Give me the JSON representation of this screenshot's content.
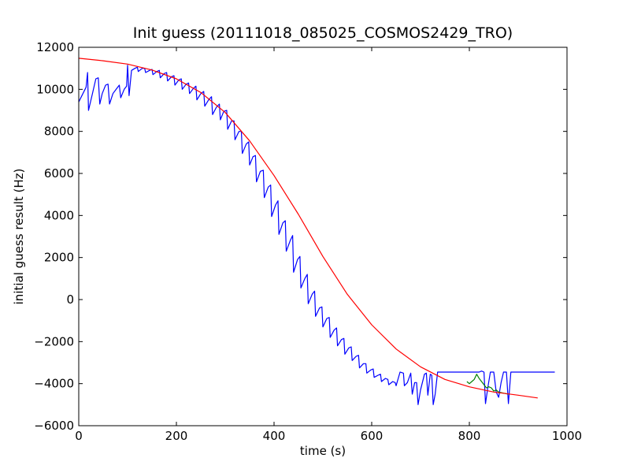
{
  "chart_data": {
    "type": "line",
    "title": "Init guess (20111018_085025_COSMOS2429_TRO)",
    "xlabel": "time (s)",
    "ylabel": "initial guess result (Hz)",
    "xlim": [
      0,
      1000
    ],
    "ylim": [
      -6000,
      12000
    ],
    "xticks": [
      0,
      200,
      400,
      600,
      800,
      1000
    ],
    "xtick_labels": [
      "0",
      "200",
      "400",
      "600",
      "800",
      "1000"
    ],
    "yticks": [
      -6000,
      -4000,
      -2000,
      0,
      2000,
      4000,
      6000,
      8000,
      10000,
      12000
    ],
    "ytick_labels": [
      "−6000",
      "−4000",
      "−2000",
      "0",
      "2000",
      "4000",
      "6000",
      "8000",
      "10000",
      "12000"
    ],
    "grid": false,
    "legend": "none",
    "series": [
      {
        "color": "#0000ff",
        "points": [
          [
            0,
            9400
          ],
          [
            15,
            10100
          ],
          [
            18,
            10800
          ],
          [
            20,
            9000
          ],
          [
            28,
            9800
          ],
          [
            35,
            10500
          ],
          [
            40,
            10550
          ],
          [
            43,
            9300
          ],
          [
            48,
            9800
          ],
          [
            55,
            10200
          ],
          [
            60,
            10250
          ],
          [
            63,
            9300
          ],
          [
            70,
            9800
          ],
          [
            78,
            10050
          ],
          [
            83,
            10200
          ],
          [
            86,
            9600
          ],
          [
            93,
            10000
          ],
          [
            98,
            10150
          ],
          [
            100,
            11150
          ],
          [
            103,
            9700
          ],
          [
            108,
            10900
          ],
          [
            115,
            11000
          ],
          [
            120,
            11050
          ],
          [
            122,
            10850
          ],
          [
            130,
            11000
          ],
          [
            135,
            11000
          ],
          [
            137,
            10800
          ],
          [
            145,
            10900
          ],
          [
            150,
            10950
          ],
          [
            152,
            10700
          ],
          [
            160,
            10850
          ],
          [
            165,
            10900
          ],
          [
            167,
            10550
          ],
          [
            175,
            10750
          ],
          [
            180,
            10800
          ],
          [
            182,
            10400
          ],
          [
            190,
            10600
          ],
          [
            195,
            10650
          ],
          [
            197,
            10200
          ],
          [
            205,
            10450
          ],
          [
            210,
            10500
          ],
          [
            212,
            10000
          ],
          [
            220,
            10250
          ],
          [
            225,
            10300
          ],
          [
            227,
            9800
          ],
          [
            235,
            10050
          ],
          [
            240,
            10150
          ],
          [
            242,
            9500
          ],
          [
            250,
            9800
          ],
          [
            256,
            9900
          ],
          [
            258,
            9200
          ],
          [
            266,
            9500
          ],
          [
            272,
            9650
          ],
          [
            274,
            8800
          ],
          [
            282,
            9150
          ],
          [
            288,
            9300
          ],
          [
            290,
            8550
          ],
          [
            297,
            8950
          ],
          [
            303,
            9000
          ],
          [
            305,
            8100
          ],
          [
            313,
            8500
          ],
          [
            318,
            8500
          ],
          [
            320,
            7600
          ],
          [
            328,
            8000
          ],
          [
            333,
            8000
          ],
          [
            335,
            6950
          ],
          [
            343,
            7400
          ],
          [
            348,
            7500
          ],
          [
            350,
            6400
          ],
          [
            357,
            6800
          ],
          [
            362,
            6850
          ],
          [
            364,
            5600
          ],
          [
            372,
            6100
          ],
          [
            378,
            6150
          ],
          [
            380,
            4850
          ],
          [
            388,
            5350
          ],
          [
            393,
            5450
          ],
          [
            395,
            3950
          ],
          [
            403,
            4500
          ],
          [
            408,
            4700
          ],
          [
            410,
            3100
          ],
          [
            418,
            3650
          ],
          [
            423,
            3750
          ],
          [
            425,
            2300
          ],
          [
            433,
            2800
          ],
          [
            438,
            3050
          ],
          [
            440,
            1300
          ],
          [
            448,
            1900
          ],
          [
            453,
            2050
          ],
          [
            455,
            550
          ],
          [
            463,
            1000
          ],
          [
            468,
            1200
          ],
          [
            470,
            -200
          ],
          [
            478,
            250
          ],
          [
            483,
            400
          ],
          [
            485,
            -800
          ],
          [
            493,
            -400
          ],
          [
            498,
            -350
          ],
          [
            500,
            -1300
          ],
          [
            508,
            -900
          ],
          [
            513,
            -850
          ],
          [
            515,
            -1800
          ],
          [
            523,
            -1450
          ],
          [
            528,
            -1350
          ],
          [
            530,
            -2200
          ],
          [
            538,
            -1900
          ],
          [
            543,
            -1850
          ],
          [
            545,
            -2600
          ],
          [
            553,
            -2300
          ],
          [
            558,
            -2250
          ],
          [
            560,
            -2900
          ],
          [
            568,
            -2700
          ],
          [
            573,
            -2650
          ],
          [
            575,
            -3250
          ],
          [
            583,
            -3050
          ],
          [
            588,
            -3050
          ],
          [
            590,
            -3500
          ],
          [
            598,
            -3350
          ],
          [
            603,
            -3300
          ],
          [
            605,
            -3700
          ],
          [
            613,
            -3600
          ],
          [
            618,
            -3550
          ],
          [
            620,
            -3900
          ],
          [
            628,
            -3750
          ],
          [
            633,
            -3800
          ],
          [
            635,
            -4050
          ],
          [
            643,
            -3900
          ],
          [
            648,
            -3950
          ],
          [
            650,
            -4100
          ],
          [
            658,
            -3450
          ],
          [
            665,
            -3500
          ],
          [
            667,
            -4100
          ],
          [
            673,
            -3950
          ],
          [
            680,
            -3500
          ],
          [
            683,
            -4500
          ],
          [
            688,
            -3950
          ],
          [
            692,
            -3950
          ],
          [
            695,
            -5000
          ],
          [
            700,
            -4300
          ],
          [
            708,
            -3550
          ],
          [
            712,
            -3500
          ],
          [
            715,
            -4550
          ],
          [
            720,
            -3550
          ],
          [
            723,
            -3600
          ],
          [
            726,
            -5000
          ],
          [
            730,
            -4500
          ],
          [
            735,
            -3450
          ],
          [
            745,
            -3450
          ],
          [
            755,
            -3450
          ],
          [
            765,
            -3450
          ],
          [
            775,
            -3450
          ],
          [
            790,
            -3450
          ],
          [
            800,
            -3450
          ],
          [
            810,
            -3450
          ],
          [
            820,
            -3450
          ],
          [
            825,
            -3400
          ],
          [
            830,
            -3450
          ],
          [
            833,
            -4950
          ],
          [
            838,
            -4150
          ],
          [
            843,
            -3450
          ],
          [
            850,
            -3450
          ],
          [
            855,
            -4400
          ],
          [
            860,
            -4650
          ],
          [
            865,
            -3950
          ],
          [
            870,
            -3450
          ],
          [
            876,
            -3450
          ],
          [
            880,
            -4950
          ],
          [
            885,
            -3450
          ],
          [
            900,
            -3450
          ],
          [
            940,
            -3450
          ],
          [
            975,
            -3450
          ]
        ]
      },
      {
        "color": "#008000",
        "points": [
          [
            795,
            -3900
          ],
          [
            800,
            -4000
          ],
          [
            805,
            -3900
          ],
          [
            810,
            -3800
          ],
          [
            815,
            -3550
          ],
          [
            820,
            -3750
          ],
          [
            825,
            -3900
          ],
          [
            830,
            -4050
          ],
          [
            835,
            -4200
          ],
          [
            840,
            -4150
          ],
          [
            845,
            -4200
          ],
          [
            850,
            -4350
          ],
          [
            855,
            -4300
          ],
          [
            860,
            -4400
          ],
          [
            870,
            -4450
          ],
          [
            880,
            -4500
          ]
        ]
      },
      {
        "color": "#ff0000",
        "points": [
          [
            0,
            11480
          ],
          [
            50,
            11360
          ],
          [
            100,
            11200
          ],
          [
            150,
            10920
          ],
          [
            200,
            10500
          ],
          [
            250,
            9850
          ],
          [
            300,
            8900
          ],
          [
            350,
            7550
          ],
          [
            400,
            5900
          ],
          [
            450,
            4050
          ],
          [
            500,
            2050
          ],
          [
            550,
            250
          ],
          [
            600,
            -1200
          ],
          [
            650,
            -2350
          ],
          [
            700,
            -3200
          ],
          [
            750,
            -3800
          ],
          [
            800,
            -4150
          ],
          [
            850,
            -4400
          ],
          [
            900,
            -4550
          ],
          [
            940,
            -4680
          ]
        ]
      }
    ]
  }
}
